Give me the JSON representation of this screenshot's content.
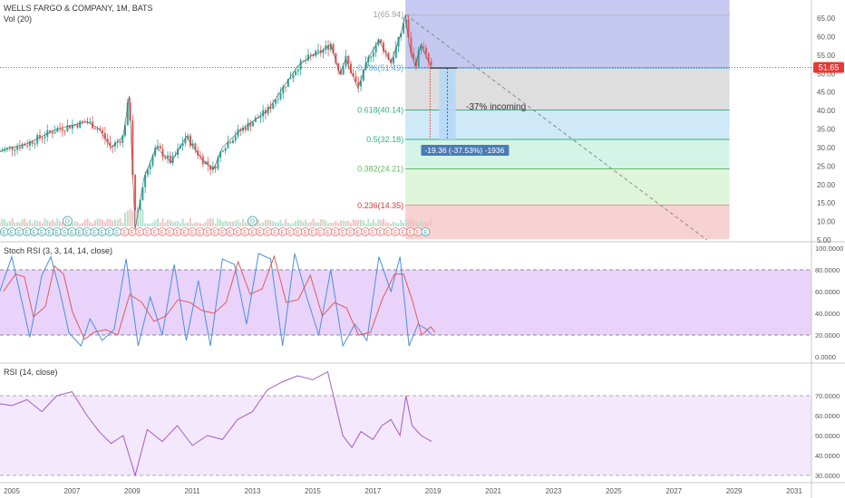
{
  "header": {
    "symbol_title": "WELLS FARGO & COMPANY, 1M, BATS",
    "volume_label": "Vol (20)"
  },
  "price_pane": {
    "y_ticks": [
      "65.00",
      "60.00",
      "55.00",
      "50.00",
      "45.00",
      "40.00",
      "35.00",
      "30.00",
      "25.00",
      "20.00",
      "15.00",
      "10.00",
      "5.00"
    ],
    "last_price": "51.65",
    "last_price_color": "#e53935",
    "fib_levels": [
      {
        "label": "1(65.94)",
        "value": 65.94,
        "color": "#9e9e9e",
        "fill": "#c5c8ef"
      },
      {
        "label": "0.786(51.49)",
        "value": 51.49,
        "color": "#5ba6e0",
        "fill": "#dedede"
      },
      {
        "label": "0.618(40.14)",
        "value": 40.14,
        "color": "#2eb67d",
        "fill": "#cfe9f8"
      },
      {
        "label": "0.5(32.18)",
        "value": 32.18,
        "color": "#2eb67d",
        "fill": "#d3f4e6"
      },
      {
        "label": "0.382(24.21)",
        "value": 24.21,
        "color": "#66bb6a",
        "fill": "#dff5d9"
      },
      {
        "label": "0.236(14.35)",
        "value": 14.35,
        "color": "#e53935",
        "fill": "#eaf7dc"
      }
    ],
    "fib_bottom_fill": "#f7d2d2",
    "annotation_text": "-37% incoming",
    "measure_label": "-19.36 (-37.53%) -1936",
    "event_markers": [
      "D",
      "D"
    ],
    "earnings_marker": "E",
    "split_marker": "S"
  },
  "stoch_pane": {
    "title": "Stoch RSI (3, 3, 14, 14, close)",
    "y_ticks": [
      "100.0000",
      "80.0000",
      "60.0000",
      "40.0000",
      "20.0000",
      "0.0000"
    ]
  },
  "rsi_pane": {
    "title": "RSI (14, close)",
    "y_ticks": [
      "70.0000",
      "60.0000",
      "50.0000",
      "40.0000",
      "30.0000"
    ]
  },
  "x_axis": {
    "ticks": [
      "2005",
      "2007",
      "2009",
      "2011",
      "2013",
      "2015",
      "2017",
      "2019",
      "2021",
      "2023",
      "2025",
      "2027",
      "2029",
      "2031"
    ]
  },
  "chart_data": [
    {
      "type": "line",
      "title": "WELLS FARGO & COMPANY, 1M, BATS",
      "x": [
        2004.6,
        2005.0,
        2005.5,
        2006.0,
        2006.5,
        2007.0,
        2007.5,
        2007.9,
        2008.3,
        2008.7,
        2008.9,
        2009.1,
        2009.4,
        2009.8,
        2010.3,
        2010.8,
        2011.3,
        2011.7,
        2012.0,
        2012.5,
        2013.0,
        2013.5,
        2014.0,
        2014.5,
        2015.0,
        2015.3,
        2015.6,
        2015.9,
        2016.1,
        2016.5,
        2016.9,
        2017.2,
        2017.6,
        2017.9,
        2018.08,
        2018.2,
        2018.4,
        2018.6,
        2018.8,
        2018.95
      ],
      "values": [
        29,
        30,
        31,
        33,
        35,
        36,
        37,
        35,
        30,
        33,
        44,
        8,
        22,
        30,
        26,
        33,
        27,
        24,
        30,
        34,
        37,
        40,
        46,
        52,
        55,
        56,
        58,
        50,
        54,
        46,
        55,
        59,
        53,
        60,
        65.9,
        58,
        52,
        58,
        54,
        51.65
      ],
      "ylim": [
        5,
        67
      ]
    },
    {
      "type": "line",
      "title": "Stoch RSI (3, 3, 14, 14, close)",
      "x": [
        2004.6,
        2005.0,
        2005.3,
        2005.6,
        2006.0,
        2006.3,
        2006.6,
        2006.9,
        2007.3,
        2007.6,
        2008.0,
        2008.4,
        2008.8,
        2009.2,
        2009.6,
        2010.0,
        2010.4,
        2010.8,
        2011.2,
        2011.6,
        2012.0,
        2012.4,
        2012.8,
        2013.2,
        2013.6,
        2014.0,
        2014.4,
        2014.8,
        2015.2,
        2015.6,
        2016.0,
        2016.4,
        2016.8,
        2017.2,
        2017.6,
        2017.9,
        2018.2,
        2018.5,
        2018.8,
        2018.95
      ],
      "values": [
        60,
        92,
        55,
        18,
        75,
        92,
        60,
        22,
        10,
        35,
        15,
        25,
        90,
        10,
        55,
        20,
        85,
        15,
        70,
        10,
        90,
        85,
        30,
        95,
        90,
        10,
        95,
        55,
        20,
        80,
        10,
        30,
        15,
        92,
        60,
        92,
        10,
        30,
        25,
        20
      ],
      "ylim": [
        0,
        100
      ],
      "bands": [
        20,
        80
      ]
    },
    {
      "type": "line",
      "title": "RSI (14, close)",
      "x": [
        2004.6,
        2005.0,
        2005.5,
        2006.0,
        2006.5,
        2007.0,
        2007.5,
        2007.9,
        2008.3,
        2008.7,
        2008.9,
        2009.1,
        2009.5,
        2010.0,
        2010.5,
        2011.0,
        2011.5,
        2012.0,
        2012.5,
        2013.0,
        2013.5,
        2014.0,
        2014.5,
        2015.0,
        2015.5,
        2016.0,
        2016.3,
        2016.6,
        2017.0,
        2017.3,
        2017.6,
        2017.9,
        2018.1,
        2018.3,
        2018.6,
        2018.95
      ],
      "values": [
        66,
        65,
        68,
        62,
        70,
        72,
        60,
        52,
        46,
        50,
        40,
        30,
        53,
        47,
        55,
        45,
        50,
        48,
        58,
        62,
        73,
        77,
        80,
        78,
        82,
        50,
        44,
        52,
        48,
        55,
        58,
        50,
        70,
        55,
        50,
        47
      ],
      "ylim": [
        30,
        85
      ],
      "bands": [
        30,
        70
      ]
    }
  ]
}
